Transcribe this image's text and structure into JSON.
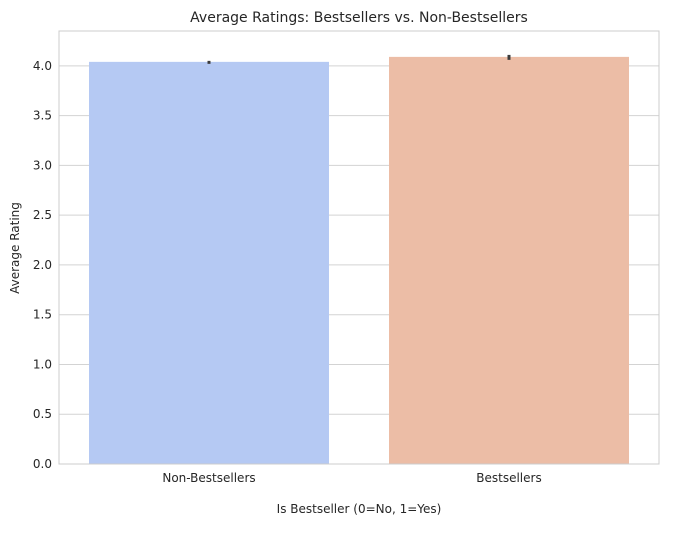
{
  "chart_data": {
    "type": "bar",
    "title": "Average Ratings: Bestsellers vs. Non-Bestsellers",
    "xlabel": "Is Bestseller (0=No, 1=Yes)",
    "ylabel": "Average Rating",
    "categories": [
      "Non-Bestsellers",
      "Bestsellers"
    ],
    "values": [
      4.04,
      4.09
    ],
    "error_bars": [
      [
        4.02,
        4.05
      ],
      [
        4.06,
        4.11
      ]
    ],
    "colors": [
      "#b5c9f3",
      "#ecbda6"
    ],
    "ylim": [
      0,
      4.35
    ],
    "yticks": [
      "0.0",
      "0.5",
      "1.0",
      "1.5",
      "2.0",
      "2.5",
      "3.0",
      "3.5",
      "4.0"
    ],
    "grid": "horizontal",
    "legend": "none"
  }
}
